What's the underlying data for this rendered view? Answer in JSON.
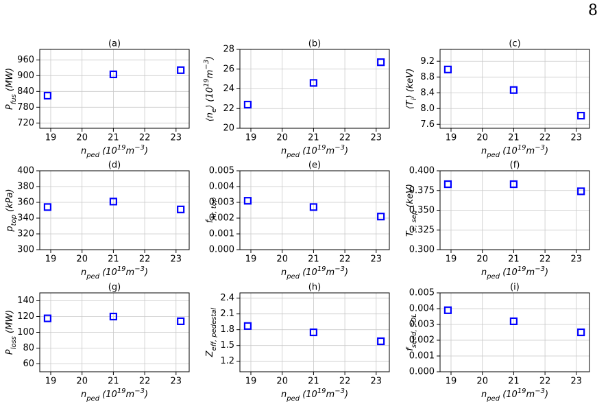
{
  "page_number": "8",
  "chart_data": [
    {
      "type": "scatter",
      "title": "(a)",
      "x": [
        18.9,
        21,
        23.15
      ],
      "values": [
        824,
        905,
        921
      ],
      "color": "#0000ff",
      "xlim": [
        18.65,
        23.42
      ],
      "xticks": [
        19,
        20,
        21,
        22,
        23
      ],
      "ylim": [
        700,
        1000
      ],
      "yticks": [
        720,
        780,
        840,
        900,
        960
      ],
      "grid": true,
      "xlabel": [
        {
          "text": "n"
        },
        {
          "text": "ped",
          "sub": true
        },
        {
          "text": " (10"
        },
        {
          "text": "19",
          "sup": true
        },
        {
          "text": "m"
        },
        {
          "text": "−3",
          "sup": true
        },
        {
          "text": ")"
        }
      ],
      "ylabel": [
        {
          "text": "P"
        },
        {
          "text": "fus",
          "sub": true
        },
        {
          "text": " (MW)"
        }
      ]
    },
    {
      "type": "scatter",
      "title": "(b)",
      "x": [
        18.9,
        21,
        23.15
      ],
      "values": [
        22.4,
        24.6,
        26.7
      ],
      "color": "#0000ff",
      "xlim": [
        18.65,
        23.42
      ],
      "xticks": [
        19,
        20,
        21,
        22,
        23
      ],
      "ylim": [
        20,
        28
      ],
      "yticks": [
        20,
        22,
        24,
        26,
        28
      ],
      "grid": true,
      "xlabel": [
        {
          "text": "n"
        },
        {
          "text": "ped",
          "sub": true
        },
        {
          "text": " (10"
        },
        {
          "text": "19",
          "sup": true
        },
        {
          "text": "m"
        },
        {
          "text": "−3",
          "sup": true
        },
        {
          "text": ")"
        }
      ],
      "ylabel": [
        {
          "text": "⟨n"
        },
        {
          "text": "e",
          "sub": true
        },
        {
          "text": "⟩ (10"
        },
        {
          "text": "19",
          "sup": true
        },
        {
          "text": "m"
        },
        {
          "text": "−3",
          "sup": true
        },
        {
          "text": ")"
        }
      ]
    },
    {
      "type": "scatter",
      "title": "(c)",
      "x": [
        18.9,
        21,
        23.15
      ],
      "values": [
        8.99,
        8.47,
        7.82
      ],
      "color": "#0000ff",
      "xlim": [
        18.65,
        23.42
      ],
      "xticks": [
        19,
        20,
        21,
        22,
        23
      ],
      "ylim": [
        7.5,
        9.5
      ],
      "yticks": [
        7.6,
        {
          "value": 8,
          "label": "8.0"
        },
        8.4,
        8.8,
        9.2
      ],
      "grid": true,
      "xlabel": [
        {
          "text": "n"
        },
        {
          "text": "ped",
          "sub": true
        },
        {
          "text": " (10"
        },
        {
          "text": "19",
          "sup": true
        },
        {
          "text": "m"
        },
        {
          "text": "−3",
          "sup": true
        },
        {
          "text": ")"
        }
      ],
      "ylabel": [
        {
          "text": "⟨T"
        },
        {
          "text": "i",
          "sub": true
        },
        {
          "text": "⟩ (keV)"
        }
      ]
    },
    {
      "type": "scatter",
      "title": "(d)",
      "x": [
        18.9,
        21,
        23.15
      ],
      "values": [
        354,
        361,
        351
      ],
      "color": "#0000ff",
      "xlim": [
        18.65,
        23.42
      ],
      "xticks": [
        19,
        20,
        21,
        22,
        23
      ],
      "ylim": [
        300,
        400
      ],
      "yticks": [
        300,
        320,
        340,
        360,
        380,
        400
      ],
      "grid": true,
      "xlabel": [
        {
          "text": "n"
        },
        {
          "text": "ped",
          "sub": true
        },
        {
          "text": " (10"
        },
        {
          "text": "19",
          "sup": true
        },
        {
          "text": "m"
        },
        {
          "text": "−3",
          "sup": true
        },
        {
          "text": ")"
        }
      ],
      "ylabel": [
        {
          "text": "p"
        },
        {
          "text": "top",
          "sub": true
        },
        {
          "text": " (kPa)"
        }
      ]
    },
    {
      "type": "scatter",
      "title": "(e)",
      "x": [
        18.9,
        21,
        23.15
      ],
      "values": [
        0.0031,
        0.0027,
        0.0021
      ],
      "color": "#0000ff",
      "xlim": [
        18.65,
        23.42
      ],
      "xticks": [
        19,
        20,
        21,
        22,
        23
      ],
      "ylim": [
        0,
        0.005
      ],
      "yticks": [
        {
          "value": 0,
          "label": "0.000"
        },
        0.001,
        0.002,
        0.003,
        0.004,
        0.005
      ],
      "grid": true,
      "xlabel": [
        {
          "text": "n"
        },
        {
          "text": "ped",
          "sub": true
        },
        {
          "text": " (10"
        },
        {
          "text": "19",
          "sup": true
        },
        {
          "text": "m"
        },
        {
          "text": "−3",
          "sup": true
        },
        {
          "text": ")"
        }
      ],
      "ylabel": [
        {
          "text": "f"
        },
        {
          "text": "Ar, top",
          "sub": true
        }
      ]
    },
    {
      "type": "scatter",
      "title": "(f)",
      "x": [
        18.9,
        21,
        23.15
      ],
      "values": [
        0.383,
        0.383,
        0.374
      ],
      "color": "#0000ff",
      "xlim": [
        18.65,
        23.42
      ],
      "xticks": [
        19,
        20,
        21,
        22,
        23
      ],
      "ylim": [
        0.3,
        0.4
      ],
      "yticks": [
        {
          "value": 0.3,
          "label": "0.300"
        },
        0.325,
        {
          "value": 0.35,
          "label": "0.350"
        },
        0.375,
        {
          "value": 0.4,
          "label": "0.400"
        }
      ],
      "grid": true,
      "xlabel": [
        {
          "text": "n"
        },
        {
          "text": "ped",
          "sub": true
        },
        {
          "text": " (10"
        },
        {
          "text": "19",
          "sup": true
        },
        {
          "text": "m"
        },
        {
          "text": "−3",
          "sup": true
        },
        {
          "text": ")"
        }
      ],
      "ylabel": [
        {
          "text": "T"
        },
        {
          "text": "e, sep",
          "sub": true
        },
        {
          "text": " (keV)"
        }
      ]
    },
    {
      "type": "scatter",
      "title": "(g)",
      "x": [
        18.9,
        21,
        23.15
      ],
      "values": [
        117.7,
        120,
        114
      ],
      "color": "#0000ff",
      "xlim": [
        18.65,
        23.42
      ],
      "xticks": [
        19,
        20,
        21,
        22,
        23
      ],
      "ylim": [
        50,
        150
      ],
      "yticks": [
        60,
        80,
        100,
        120,
        140
      ],
      "grid": true,
      "xlabel": [
        {
          "text": "n"
        },
        {
          "text": "ped",
          "sub": true
        },
        {
          "text": " (10"
        },
        {
          "text": "19",
          "sup": true
        },
        {
          "text": "m"
        },
        {
          "text": "−3",
          "sup": true
        },
        {
          "text": ")"
        }
      ],
      "ylabel": [
        {
          "text": "P"
        },
        {
          "text": "loss",
          "sub": true
        },
        {
          "text": " (MW)"
        }
      ]
    },
    {
      "type": "scatter",
      "title": "(h)",
      "x": [
        18.9,
        21,
        23.15
      ],
      "values": [
        1.87,
        1.75,
        1.58
      ],
      "color": "#0000ff",
      "xlim": [
        18.65,
        23.42
      ],
      "xticks": [
        19,
        20,
        21,
        22,
        23
      ],
      "ylim": [
        1.0,
        2.5
      ],
      "yticks": [
        1.2,
        1.5,
        1.8,
        2.1,
        2.4
      ],
      "grid": true,
      "xlabel": [
        {
          "text": "n"
        },
        {
          "text": "ped",
          "sub": true
        },
        {
          "text": " (10"
        },
        {
          "text": "19",
          "sup": true
        },
        {
          "text": "m"
        },
        {
          "text": "−3",
          "sup": true
        },
        {
          "text": ")"
        }
      ],
      "ylabel": [
        {
          "text": "Z"
        },
        {
          "text": "eff, pedestal",
          "sub": true
        }
      ]
    },
    {
      "type": "scatter",
      "title": "(i)",
      "x": [
        18.9,
        21,
        23.15
      ],
      "values": [
        0.0039,
        0.0032,
        0.0025
      ],
      "color": "#0000ff",
      "xlim": [
        18.65,
        23.42
      ],
      "xticks": [
        19,
        20,
        21,
        22,
        23
      ],
      "ylim": [
        0,
        0.005
      ],
      "yticks": [
        {
          "value": 0,
          "label": "0.000"
        },
        0.001,
        0.002,
        0.003,
        0.004,
        0.005
      ],
      "grid": true,
      "xlabel": [
        {
          "text": "n"
        },
        {
          "text": "ped",
          "sub": true
        },
        {
          "text": " (10"
        },
        {
          "text": "19",
          "sup": true
        },
        {
          "text": "m"
        },
        {
          "text": "−3",
          "sup": true
        },
        {
          "text": ")"
        }
      ],
      "ylabel": [
        {
          "text": "f"
        },
        {
          "text": "seed, SOL",
          "sub": true
        }
      ]
    }
  ]
}
